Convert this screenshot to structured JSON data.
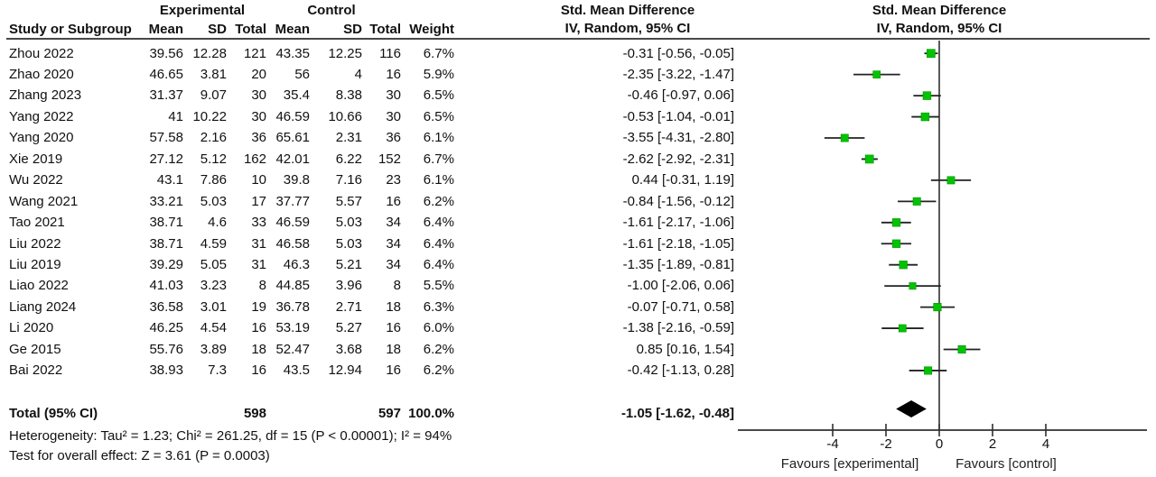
{
  "header": {
    "group_experimental": "Experimental",
    "group_control": "Control",
    "group_smd_table": "Std. Mean Difference",
    "group_smd_plot": "Std. Mean Difference",
    "col_study": "Study or Subgroup",
    "col_mean_e": "Mean",
    "col_sd_e": "SD",
    "col_total_e": "Total",
    "col_mean_c": "Mean",
    "col_sd_c": "SD",
    "col_total_c": "Total",
    "col_weight": "Weight",
    "col_ci_table": "IV, Random, 95% CI",
    "col_ci_plot": "IV, Random, 95% CI"
  },
  "footer": {
    "heterogeneity": "Heterogeneity: Tau² = 1.23; Chi² = 261.25, df = 15 (P < 0.00001); I² = 94%",
    "overall_effect": "Test for overall effect: Z = 3.61 (P = 0.0003)"
  },
  "plot": {
    "tick_values": [
      -4,
      -2,
      0,
      2,
      4
    ],
    "tick_labels": [
      "-4",
      "-2",
      "0",
      "2",
      "4"
    ],
    "favours_left": "Favours [experimental]",
    "favours_right": "Favours [control]",
    "marker_color": "#00c400",
    "marker_edge_color": "#009000",
    "line_color": "#303030",
    "diamond_color": "#000000"
  },
  "chart_data": {
    "type": "forest",
    "effect_measure": "Std. Mean Difference (IV, Random, 95% CI)",
    "x_ticks": [
      -4,
      -2,
      0,
      2,
      4
    ],
    "xlim_px_note": "zero line centered, ticks every 2 units",
    "studies": [
      {
        "name": "Zhou 2022",
        "mean_e": "39.56",
        "sd_e": "12.28",
        "n_e": "121",
        "mean_c": "43.35",
        "sd_c": "12.25",
        "n_c": "116",
        "weight": "6.7%",
        "weight_value": 6.7,
        "ci_text": "-0.31 [-0.56, -0.05]",
        "est": -0.31,
        "lo": -0.56,
        "hi": -0.05
      },
      {
        "name": "Zhao 2020",
        "mean_e": "46.65",
        "sd_e": "3.81",
        "n_e": "20",
        "mean_c": "56",
        "sd_c": "4",
        "n_c": "16",
        "weight": "5.9%",
        "weight_value": 5.9,
        "ci_text": "-2.35 [-3.22, -1.47]",
        "est": -2.35,
        "lo": -3.22,
        "hi": -1.47
      },
      {
        "name": "Zhang 2023",
        "mean_e": "31.37",
        "sd_e": "9.07",
        "n_e": "30",
        "mean_c": "35.4",
        "sd_c": "8.38",
        "n_c": "30",
        "weight": "6.5%",
        "weight_value": 6.5,
        "ci_text": "-0.46 [-0.97, 0.06]",
        "est": -0.46,
        "lo": -0.97,
        "hi": 0.06
      },
      {
        "name": "Yang 2022",
        "mean_e": "41",
        "sd_e": "10.22",
        "n_e": "30",
        "mean_c": "46.59",
        "sd_c": "10.66",
        "n_c": "30",
        "weight": "6.5%",
        "weight_value": 6.5,
        "ci_text": "-0.53 [-1.04, -0.01]",
        "est": -0.53,
        "lo": -1.04,
        "hi": -0.01
      },
      {
        "name": "Yang 2020",
        "mean_e": "57.58",
        "sd_e": "2.16",
        "n_e": "36",
        "mean_c": "65.61",
        "sd_c": "2.31",
        "n_c": "36",
        "weight": "6.1%",
        "weight_value": 6.1,
        "ci_text": "-3.55 [-4.31, -2.80]",
        "est": -3.55,
        "lo": -4.31,
        "hi": -2.8
      },
      {
        "name": "Xie 2019",
        "mean_e": "27.12",
        "sd_e": "5.12",
        "n_e": "162",
        "mean_c": "42.01",
        "sd_c": "6.22",
        "n_c": "152",
        "weight": "6.7%",
        "weight_value": 6.7,
        "ci_text": "-2.62 [-2.92, -2.31]",
        "est": -2.62,
        "lo": -2.92,
        "hi": -2.31
      },
      {
        "name": "Wu 2022",
        "mean_e": "43.1",
        "sd_e": "7.86",
        "n_e": "10",
        "mean_c": "39.8",
        "sd_c": "7.16",
        "n_c": "23",
        "weight": "6.1%",
        "weight_value": 6.1,
        "ci_text": "0.44 [-0.31, 1.19]",
        "est": 0.44,
        "lo": -0.31,
        "hi": 1.19
      },
      {
        "name": "Wang 2021",
        "mean_e": "33.21",
        "sd_e": "5.03",
        "n_e": "17",
        "mean_c": "37.77",
        "sd_c": "5.57",
        "n_c": "16",
        "weight": "6.2%",
        "weight_value": 6.2,
        "ci_text": "-0.84 [-1.56, -0.12]",
        "est": -0.84,
        "lo": -1.56,
        "hi": -0.12
      },
      {
        "name": "Tao 2021",
        "mean_e": "38.71",
        "sd_e": "4.6",
        "n_e": "33",
        "mean_c": "46.59",
        "sd_c": "5.03",
        "n_c": "34",
        "weight": "6.4%",
        "weight_value": 6.4,
        "ci_text": "-1.61 [-2.17, -1.06]",
        "est": -1.61,
        "lo": -2.17,
        "hi": -1.06
      },
      {
        "name": "Liu 2022",
        "mean_e": "38.71",
        "sd_e": "4.59",
        "n_e": "31",
        "mean_c": "46.58",
        "sd_c": "5.03",
        "n_c": "34",
        "weight": "6.4%",
        "weight_value": 6.4,
        "ci_text": "-1.61 [-2.18, -1.05]",
        "est": -1.61,
        "lo": -2.18,
        "hi": -1.05
      },
      {
        "name": "Liu 2019",
        "mean_e": "39.29",
        "sd_e": "5.05",
        "n_e": "31",
        "mean_c": "46.3",
        "sd_c": "5.21",
        "n_c": "34",
        "weight": "6.4%",
        "weight_value": 6.4,
        "ci_text": "-1.35 [-1.89, -0.81]",
        "est": -1.35,
        "lo": -1.89,
        "hi": -0.81
      },
      {
        "name": "Liao 2022",
        "mean_e": "41.03",
        "sd_e": "3.23",
        "n_e": "8",
        "mean_c": "44.85",
        "sd_c": "3.96",
        "n_c": "8",
        "weight": "5.5%",
        "weight_value": 5.5,
        "ci_text": "-1.00 [-2.06, 0.06]",
        "est": -1.0,
        "lo": -2.06,
        "hi": 0.06
      },
      {
        "name": "Liang 2024",
        "mean_e": "36.58",
        "sd_e": "3.01",
        "n_e": "19",
        "mean_c": "36.78",
        "sd_c": "2.71",
        "n_c": "18",
        "weight": "6.3%",
        "weight_value": 6.3,
        "ci_text": "-0.07 [-0.71, 0.58]",
        "est": -0.07,
        "lo": -0.71,
        "hi": 0.58
      },
      {
        "name": "Li 2020",
        "mean_e": "46.25",
        "sd_e": "4.54",
        "n_e": "16",
        "mean_c": "53.19",
        "sd_c": "5.27",
        "n_c": "16",
        "weight": "6.0%",
        "weight_value": 6.0,
        "ci_text": "-1.38 [-2.16, -0.59]",
        "est": -1.38,
        "lo": -2.16,
        "hi": -0.59
      },
      {
        "name": "Ge 2015",
        "mean_e": "55.76",
        "sd_e": "3.89",
        "n_e": "18",
        "mean_c": "52.47",
        "sd_c": "3.68",
        "n_c": "18",
        "weight": "6.2%",
        "weight_value": 6.2,
        "ci_text": "0.85 [0.16, 1.54]",
        "est": 0.85,
        "lo": 0.16,
        "hi": 1.54
      },
      {
        "name": "Bai 2022",
        "mean_e": "38.93",
        "sd_e": "7.3",
        "n_e": "16",
        "mean_c": "43.5",
        "sd_c": "12.94",
        "n_c": "16",
        "weight": "6.2%",
        "weight_value": 6.2,
        "ci_text": "-0.42 [-1.13, 0.28]",
        "est": -0.42,
        "lo": -1.13,
        "hi": 0.28
      }
    ],
    "total": {
      "label": "Total (95% CI)",
      "n_e": "598",
      "n_c": "597",
      "weight": "100.0%",
      "ci_text": "-1.05 [-1.62, -0.48]",
      "est": -1.05,
      "lo": -1.62,
      "hi": -0.48
    }
  }
}
